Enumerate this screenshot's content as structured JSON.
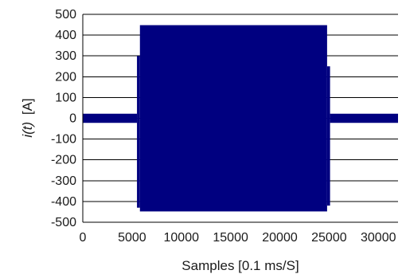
{
  "chart_data": {
    "type": "area",
    "title": "",
    "xlabel": "Samples [0.1 ms/S]",
    "ylabel_main": "i(t)",
    "ylabel_unit": "[A]",
    "xlim": [
      0,
      32000
    ],
    "ylim": [
      -500,
      500
    ],
    "xticks": [
      0,
      5000,
      10000,
      15000,
      20000,
      25000,
      30000
    ],
    "xtick_labels": [
      "0",
      "5000",
      "10000",
      "15000",
      "20000",
      "25000",
      "30000"
    ],
    "yticks": [
      500,
      400,
      300,
      200,
      100,
      0,
      -100,
      -200,
      -300,
      -400,
      -500
    ],
    "ytick_labels": [
      "500",
      "400",
      "300",
      "200",
      "100",
      "0",
      "-100",
      "-200",
      "-300",
      "-400",
      "-500"
    ],
    "grid": "horizontal",
    "legend": "none",
    "series": [
      {
        "color": "#000080",
        "description_of_envelope": "oscillating current shown as filled band between upper and lower envelope",
        "segments": [
          {
            "x_start": 0,
            "x_end": 5500,
            "upper": 22,
            "lower": -22
          },
          {
            "x_start": 5500,
            "x_end": 5800,
            "upper": 300,
            "lower": -430
          },
          {
            "x_start": 5800,
            "x_end": 24800,
            "upper": 448,
            "lower": -448
          },
          {
            "x_start": 24800,
            "x_end": 25100,
            "upper": 250,
            "lower": -420
          },
          {
            "x_start": 25100,
            "x_end": 32000,
            "upper": 22,
            "lower": -22
          }
        ]
      }
    ]
  }
}
